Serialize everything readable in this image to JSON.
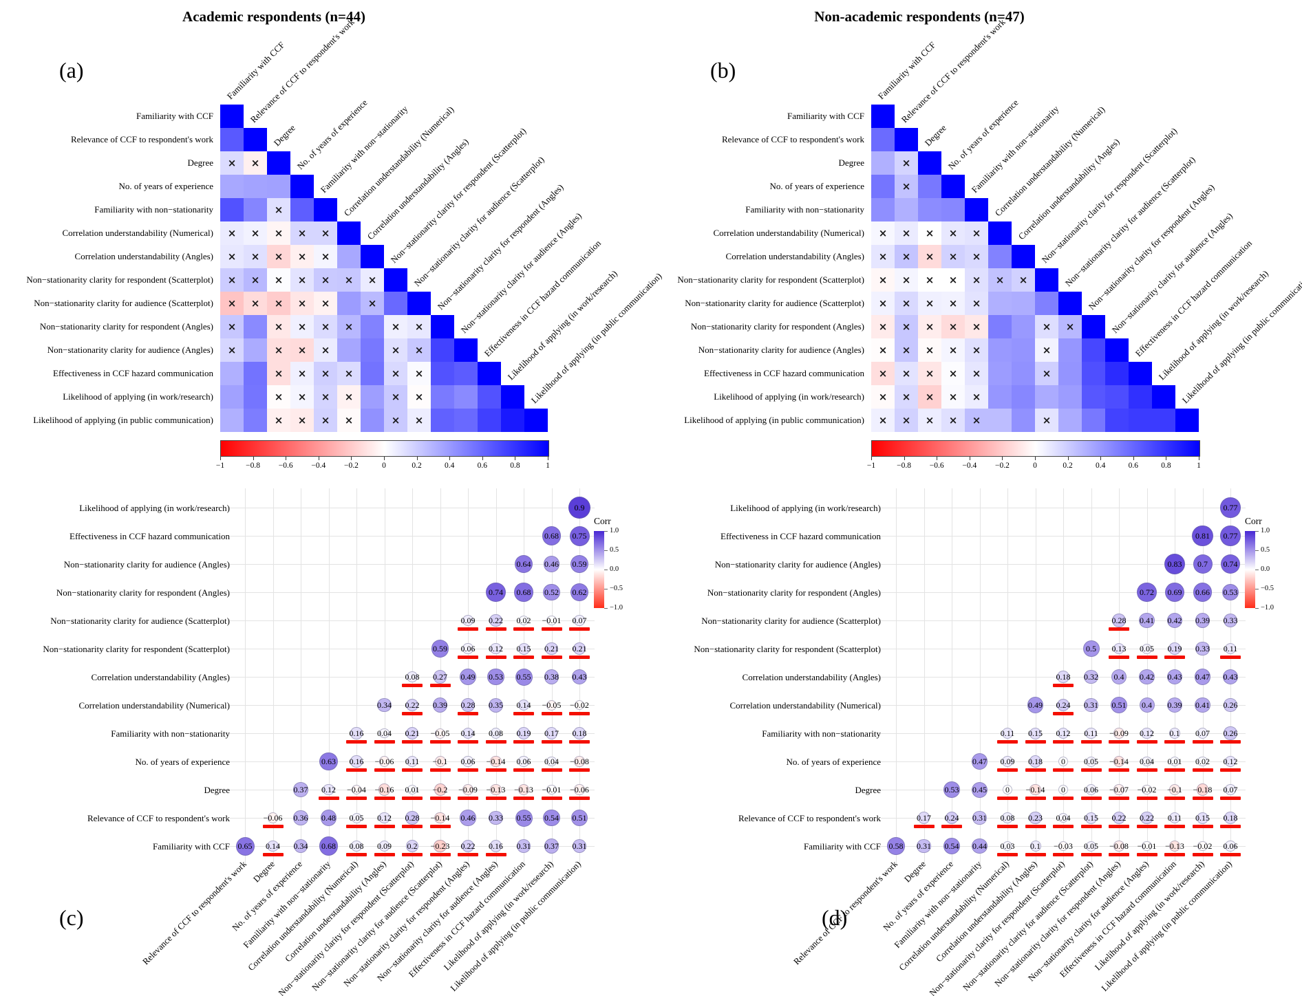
{
  "header": {
    "left_title": "Academic respondents (n=44)",
    "right_title": "Non-academic respondents (n=47)"
  },
  "panel_letters": {
    "a": "(a)",
    "b": "(b)",
    "c": "(c)",
    "d": "(d)"
  },
  "variables": [
    "Familiarity with CCF",
    "Relevance of CCF to respondent's work",
    "Degree",
    "No. of years of experience",
    "Familiarity with non−stationarity",
    "Correlation understandability (Numerical)",
    "Correlation understandability (Angles)",
    "Non−stationarity clarity for respondent (Scatterplot)",
    "Non−stationarity clarity for audience (Scatterplot)",
    "Non−stationarity clarity for respondent (Angles)",
    "Non−stationarity clarity for audience (Angles)",
    "Effectiveness in CCF hazard communication",
    "Likelihood of applying (in work/research)",
    "Likelihood of applying (in public communication)"
  ],
  "heatmap_colorbar_ticks": [
    "−1",
    "−0.8",
    "−0.6",
    "−0.4",
    "−0.2",
    "0",
    "0.2",
    "0.4",
    "0.6",
    "0.8",
    "1"
  ],
  "circle_legend": {
    "title": "Corr",
    "ticks": [
      "1.0",
      "0.5",
      "0.0",
      "−0.5",
      "−1.0"
    ]
  },
  "colors": {
    "heatmap_positive_max": "#0000FF",
    "heatmap_negative_max": "#FF0000",
    "circle_positive_max": "#4828D4",
    "circle_negative_max": "#FF2D19",
    "underline": "#F40F00",
    "x_mark": "#1A1A1A",
    "grid": "#E3E3E3"
  },
  "chart_data": [
    {
      "type": "heatmap",
      "subtype": "correlation-matrix (lower-triangle heatmap panel a + circle/value panel c)",
      "panels": [
        "a",
        "c"
      ],
      "group": "Academic respondents",
      "n": 44,
      "x_not_significant": true,
      "red_underline_not_significant": true,
      "lower_triangle_rows_for_vars_2_to_14": [
        [
          0.65
        ],
        [
          0.14,
          -0.06
        ],
        [
          0.34,
          0.36,
          0.37
        ],
        [
          0.68,
          0.48,
          0.12,
          0.63
        ],
        [
          0.08,
          0.05,
          -0.04,
          0.16,
          0.16
        ],
        [
          0.09,
          0.12,
          -0.16,
          -0.06,
          0.04,
          0.34
        ],
        [
          0.2,
          0.28,
          0.01,
          0.11,
          0.21,
          0.22,
          0.08
        ],
        [
          -0.23,
          -0.14,
          -0.2,
          -0.1,
          -0.05,
          0.39,
          0.27,
          0.59
        ],
        [
          0.22,
          0.46,
          -0.09,
          0.06,
          0.14,
          0.28,
          0.49,
          0.06,
          0.09
        ],
        [
          0.16,
          0.33,
          -0.13,
          -0.14,
          0.08,
          0.35,
          0.53,
          0.12,
          0.22,
          0.74
        ],
        [
          0.31,
          0.55,
          -0.13,
          0.06,
          0.19,
          0.14,
          0.55,
          0.15,
          0.02,
          0.68,
          0.64
        ],
        [
          0.37,
          0.54,
          -0.01,
          0.04,
          0.17,
          -0.05,
          0.38,
          0.21,
          -0.01,
          0.52,
          0.46,
          0.68
        ],
        [
          0.31,
          0.51,
          -0.06,
          -0.08,
          0.18,
          -0.02,
          0.43,
          0.21,
          0.07,
          0.62,
          0.59,
          0.75,
          0.9
        ]
      ],
      "significant": [
        [
          true
        ],
        [
          false,
          false
        ],
        [
          true,
          true,
          true
        ],
        [
          true,
          true,
          false,
          true
        ],
        [
          false,
          false,
          false,
          false,
          false
        ],
        [
          false,
          false,
          false,
          false,
          false,
          true
        ],
        [
          false,
          false,
          false,
          false,
          false,
          false,
          false
        ],
        [
          false,
          false,
          false,
          false,
          false,
          true,
          false,
          true
        ],
        [
          false,
          true,
          false,
          false,
          false,
          false,
          true,
          false,
          false
        ],
        [
          false,
          true,
          false,
          false,
          false,
          true,
          true,
          false,
          false,
          true
        ],
        [
          true,
          true,
          false,
          false,
          false,
          false,
          true,
          false,
          false,
          true,
          true
        ],
        [
          true,
          true,
          false,
          false,
          false,
          false,
          true,
          false,
          false,
          true,
          true,
          true
        ],
        [
          true,
          true,
          false,
          false,
          false,
          false,
          true,
          false,
          false,
          true,
          true,
          true,
          true
        ]
      ]
    },
    {
      "type": "heatmap",
      "subtype": "correlation-matrix (lower-triangle heatmap panel b + circle/value panel d)",
      "panels": [
        "b",
        "d"
      ],
      "group": "Non-academic respondents",
      "n": 47,
      "x_not_significant": true,
      "red_underline_not_significant": true,
      "lower_triangle_rows_for_vars_2_to_14": [
        [
          0.58
        ],
        [
          0.31,
          0.17
        ],
        [
          0.54,
          0.24,
          0.53
        ],
        [
          0.44,
          0.31,
          0.45,
          0.47
        ],
        [
          0.03,
          0.08,
          0,
          0.09,
          0.11
        ],
        [
          0.1,
          0.23,
          -0.14,
          0.18,
          0.15,
          0.49
        ],
        [
          -0.03,
          0.04,
          0,
          0,
          0.12,
          0.24,
          0.18
        ],
        [
          0.05,
          0.15,
          0.06,
          0.05,
          0.11,
          0.31,
          0.32,
          0.5
        ],
        [
          -0.08,
          0.22,
          -0.07,
          -0.14,
          -0.09,
          0.51,
          0.4,
          0.13,
          0.28
        ],
        [
          -0.01,
          0.22,
          -0.02,
          0.04,
          0.12,
          0.4,
          0.42,
          0.05,
          0.41,
          0.72
        ],
        [
          -0.13,
          0.11,
          -0.1,
          0.01,
          0.1,
          0.39,
          0.43,
          0.19,
          0.42,
          0.69,
          0.83
        ],
        [
          -0.02,
          0.15,
          -0.18,
          0.02,
          0.07,
          0.41,
          0.47,
          0.33,
          0.39,
          0.66,
          0.7,
          0.81
        ],
        [
          0.06,
          0.18,
          0.07,
          0.12,
          0.26,
          0.26,
          0.43,
          0.11,
          0.33,
          0.53,
          0.74,
          0.77,
          0.77
        ]
      ],
      "significant": [
        [
          true
        ],
        [
          true,
          false
        ],
        [
          true,
          false,
          true
        ],
        [
          true,
          true,
          true,
          true
        ],
        [
          false,
          false,
          false,
          false,
          false
        ],
        [
          false,
          false,
          false,
          false,
          false,
          true
        ],
        [
          false,
          false,
          false,
          false,
          false,
          false,
          false
        ],
        [
          false,
          false,
          false,
          false,
          false,
          true,
          true,
          true
        ],
        [
          false,
          false,
          false,
          false,
          false,
          true,
          true,
          false,
          false
        ],
        [
          false,
          false,
          false,
          false,
          false,
          true,
          true,
          false,
          true,
          true
        ],
        [
          false,
          false,
          false,
          false,
          false,
          true,
          true,
          false,
          true,
          true,
          true
        ],
        [
          false,
          false,
          false,
          false,
          false,
          true,
          true,
          true,
          true,
          true,
          true,
          true
        ],
        [
          false,
          false,
          false,
          false,
          false,
          true,
          true,
          false,
          true,
          true,
          true,
          true,
          true
        ]
      ]
    }
  ]
}
